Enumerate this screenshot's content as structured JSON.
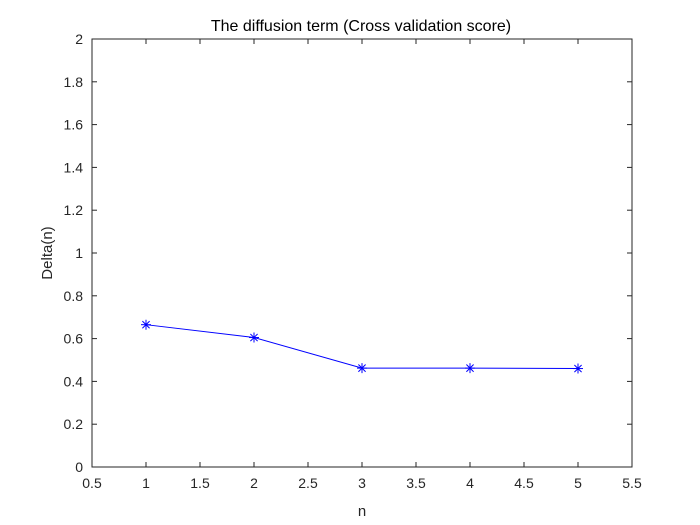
{
  "chart_data": {
    "type": "line",
    "title": "The diffusion term (Cross validation score)",
    "xlabel": "n",
    "ylabel": "Delta(n)",
    "xlim": [
      0.5,
      5.5
    ],
    "ylim": [
      0,
      2
    ],
    "xticks": [
      0.5,
      1,
      1.5,
      2,
      2.5,
      3,
      3.5,
      4,
      4.5,
      5,
      5.5
    ],
    "xtick_labels": [
      "0.5",
      "1",
      "1.5",
      "2",
      "2.5",
      "3",
      "3.5",
      "4",
      "4.5",
      "5",
      "5.5"
    ],
    "yticks": [
      0,
      0.2,
      0.4,
      0.6,
      0.8,
      1,
      1.2,
      1.4,
      1.6,
      1.8,
      2
    ],
    "ytick_labels": [
      "0",
      "0.2",
      "0.4",
      "0.6",
      "0.8",
      "1",
      "1.2",
      "1.4",
      "1.6",
      "1.8",
      "2"
    ],
    "grid": false,
    "box": true,
    "series": [
      {
        "x": [
          1,
          2,
          3,
          4,
          5
        ],
        "y": [
          0.665,
          0.605,
          0.462,
          0.462,
          0.46
        ],
        "color": "#0000ff",
        "marker": "asterisk",
        "line_style": "solid"
      }
    ]
  }
}
